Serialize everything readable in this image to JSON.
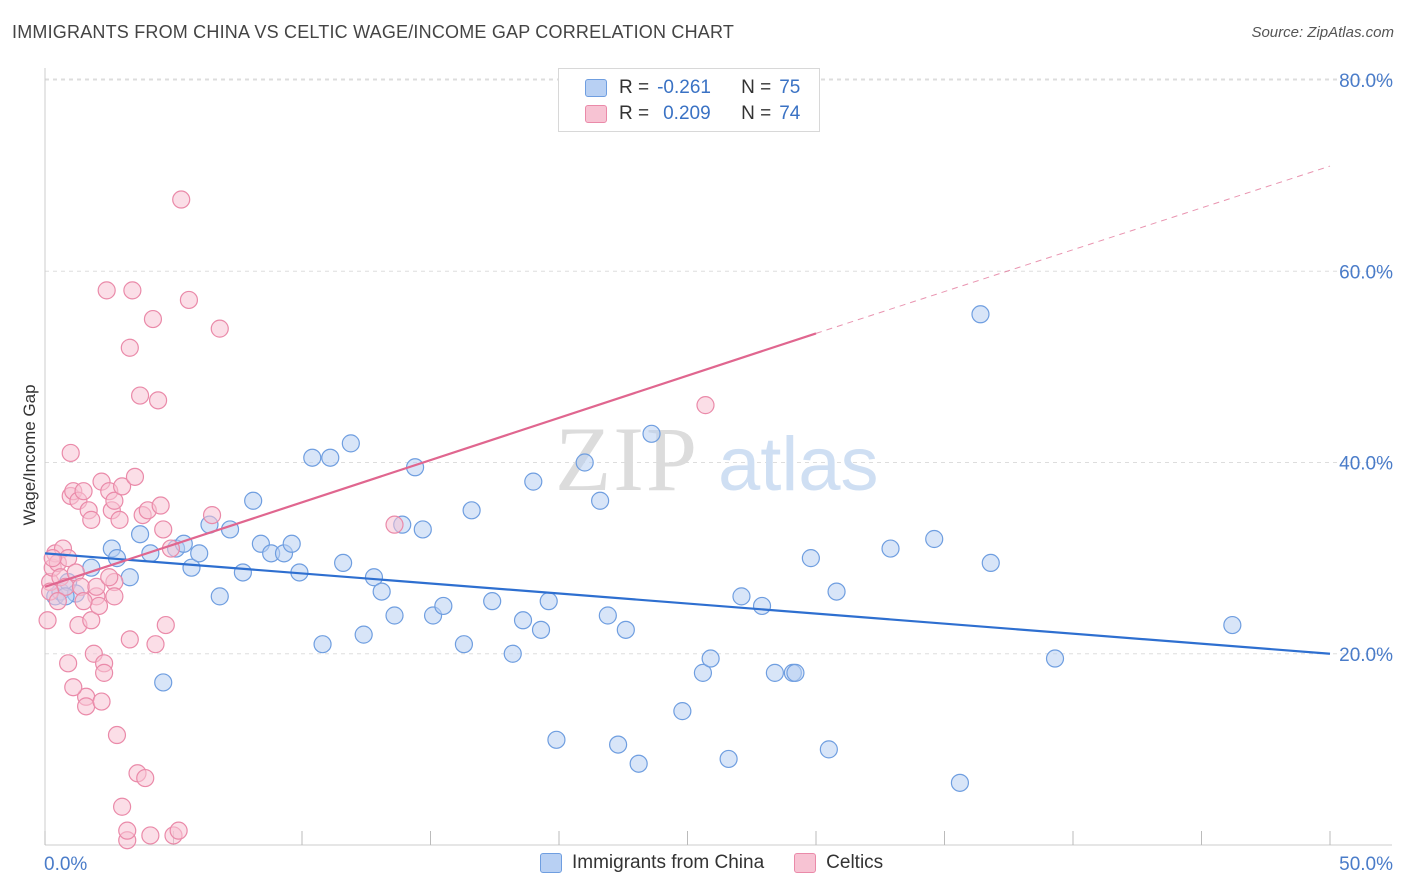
{
  "title": "IMMIGRANTS FROM CHINA VS CELTIC WAGE/INCOME GAP CORRELATION CHART",
  "source": "Source: ZipAtlas.com",
  "watermark": {
    "zip": "ZIP",
    "atlas": "atlas"
  },
  "legend": {
    "rows": [
      {
        "r_label": "R =",
        "r_value": "-0.261",
        "n_label": "N =",
        "n_value": "75"
      },
      {
        "r_label": "R =",
        "r_value": "0.209",
        "n_label": "N =",
        "n_value": "74"
      }
    ]
  },
  "colors": {
    "blue_fill": "#b8d0f3",
    "blue_stroke": "#6f9ee0",
    "blue_line": "#2e6fd0",
    "pink_fill": "#f7c3d3",
    "pink_stroke": "#ea8aa9",
    "pink_line": "#e0668f",
    "grid": "#dddddd",
    "axis_text": "#4a7cc9"
  },
  "chart_data": {
    "type": "scatter",
    "title": "IMMIGRANTS FROM CHINA VS CELTIC WAGE/INCOME GAP CORRELATION CHART",
    "xlabel": "",
    "ylabel": "Wage/Income Gap",
    "xlim": [
      0,
      50
    ],
    "ylim": [
      0,
      80
    ],
    "x_ticks_labels": [
      "0.0%",
      "50.0%"
    ],
    "y_ticks": [
      20,
      40,
      60,
      80
    ],
    "y_tick_labels": [
      "20.0%",
      "40.0%",
      "60.0%",
      "80.0%"
    ],
    "series": [
      {
        "name": "Immigrants from China",
        "color": "#6f9ee0",
        "r": -0.261,
        "n": 75,
        "trend": {
          "x0": 0,
          "y0": 30.5,
          "x1": 50,
          "y1": 20.0,
          "dashed_to": null
        },
        "points": [
          [
            0.4,
            26.0
          ],
          [
            0.6,
            26.5
          ],
          [
            0.9,
            27.5
          ],
          [
            1.2,
            26.3
          ],
          [
            1.8,
            29.0
          ],
          [
            2.6,
            31.0
          ],
          [
            2.8,
            30.0
          ],
          [
            3.3,
            28.0
          ],
          [
            3.7,
            32.5
          ],
          [
            4.1,
            30.5
          ],
          [
            4.6,
            17.0
          ],
          [
            5.1,
            31.0
          ],
          [
            5.4,
            31.5
          ],
          [
            5.7,
            29.0
          ],
          [
            6.0,
            30.5
          ],
          [
            6.4,
            33.5
          ],
          [
            6.8,
            26.0
          ],
          [
            7.2,
            33.0
          ],
          [
            7.7,
            28.5
          ],
          [
            8.1,
            36.0
          ],
          [
            8.4,
            31.5
          ],
          [
            8.8,
            30.5
          ],
          [
            9.3,
            30.5
          ],
          [
            9.6,
            31.5
          ],
          [
            9.9,
            28.5
          ],
          [
            10.4,
            40.5
          ],
          [
            10.8,
            21.0
          ],
          [
            11.1,
            40.5
          ],
          [
            11.6,
            29.5
          ],
          [
            11.9,
            42.0
          ],
          [
            12.4,
            22.0
          ],
          [
            12.8,
            28.0
          ],
          [
            13.1,
            26.5
          ],
          [
            13.6,
            24.0
          ],
          [
            13.9,
            33.5
          ],
          [
            14.4,
            39.5
          ],
          [
            14.7,
            33.0
          ],
          [
            15.1,
            24.0
          ],
          [
            15.5,
            25.0
          ],
          [
            16.3,
            21.0
          ],
          [
            16.6,
            35.0
          ],
          [
            17.4,
            25.5
          ],
          [
            18.2,
            20.0
          ],
          [
            18.6,
            23.5
          ],
          [
            19.0,
            38.0
          ],
          [
            19.3,
            22.5
          ],
          [
            19.6,
            25.5
          ],
          [
            19.9,
            11.0
          ],
          [
            21.0,
            40.0
          ],
          [
            21.6,
            36.0
          ],
          [
            21.9,
            24.0
          ],
          [
            22.3,
            10.5
          ],
          [
            22.6,
            22.5
          ],
          [
            23.1,
            8.5
          ],
          [
            23.6,
            43.0
          ],
          [
            24.8,
            14.0
          ],
          [
            25.6,
            18.0
          ],
          [
            25.9,
            19.5
          ],
          [
            26.6,
            9.0
          ],
          [
            27.1,
            26.0
          ],
          [
            27.9,
            25.0
          ],
          [
            28.4,
            18.0
          ],
          [
            29.1,
            18.0
          ],
          [
            29.2,
            18.0
          ],
          [
            29.8,
            30.0
          ],
          [
            30.5,
            10.0
          ],
          [
            30.8,
            26.5
          ],
          [
            32.9,
            31.0
          ],
          [
            34.6,
            32.0
          ],
          [
            35.6,
            6.5
          ],
          [
            36.4,
            55.5
          ],
          [
            36.8,
            29.5
          ],
          [
            39.3,
            19.5
          ],
          [
            46.2,
            23.0
          ],
          [
            0.8,
            26.0
          ]
        ]
      },
      {
        "name": "Celtics",
        "color": "#ea8aa9",
        "r": 0.209,
        "n": 74,
        "trend": {
          "x0": 0,
          "y0": 27.0,
          "x1": 30,
          "y1": 53.5,
          "dashed_x1": 50,
          "dashed_y1": 71.0
        },
        "points": [
          [
            0.1,
            23.5
          ],
          [
            0.2,
            27.5
          ],
          [
            0.3,
            29.0
          ],
          [
            0.4,
            30.5
          ],
          [
            0.5,
            29.5
          ],
          [
            0.6,
            28.0
          ],
          [
            0.7,
            31.0
          ],
          [
            0.8,
            27.0
          ],
          [
            0.9,
            30.0
          ],
          [
            1.0,
            41.0
          ],
          [
            1.0,
            36.5
          ],
          [
            1.1,
            37.0
          ],
          [
            1.2,
            28.5
          ],
          [
            1.3,
            23.0
          ],
          [
            1.3,
            36.0
          ],
          [
            1.4,
            27.0
          ],
          [
            1.5,
            37.0
          ],
          [
            1.6,
            15.5
          ],
          [
            1.6,
            14.5
          ],
          [
            1.7,
            35.0
          ],
          [
            1.8,
            34.0
          ],
          [
            1.8,
            23.5
          ],
          [
            1.9,
            20.0
          ],
          [
            2.0,
            26.0
          ],
          [
            2.0,
            27.0
          ],
          [
            2.1,
            25.0
          ],
          [
            2.2,
            15.0
          ],
          [
            2.2,
            38.0
          ],
          [
            2.3,
            19.0
          ],
          [
            2.3,
            18.0
          ],
          [
            2.4,
            58.0
          ],
          [
            2.5,
            37.0
          ],
          [
            2.6,
            35.0
          ],
          [
            2.7,
            27.5
          ],
          [
            2.7,
            26.0
          ],
          [
            2.7,
            36.0
          ],
          [
            2.8,
            11.5
          ],
          [
            2.9,
            34.0
          ],
          [
            3.0,
            37.5
          ],
          [
            3.0,
            4.0
          ],
          [
            3.2,
            0.5
          ],
          [
            3.2,
            1.5
          ],
          [
            3.3,
            52.0
          ],
          [
            3.3,
            21.5
          ],
          [
            3.4,
            58.0
          ],
          [
            3.5,
            38.5
          ],
          [
            3.6,
            7.5
          ],
          [
            3.7,
            47.0
          ],
          [
            3.8,
            34.5
          ],
          [
            3.9,
            7.0
          ],
          [
            4.0,
            35.0
          ],
          [
            4.1,
            1.0
          ],
          [
            4.2,
            55.0
          ],
          [
            4.3,
            21.0
          ],
          [
            4.4,
            46.5
          ],
          [
            4.5,
            35.5
          ],
          [
            4.6,
            33.0
          ],
          [
            4.7,
            23.0
          ],
          [
            4.9,
            31.0
          ],
          [
            5.0,
            1.0
          ],
          [
            5.2,
            1.5
          ],
          [
            5.3,
            67.5
          ],
          [
            5.6,
            57.0
          ],
          [
            6.5,
            34.5
          ],
          [
            6.8,
            54.0
          ],
          [
            13.6,
            33.5
          ],
          [
            25.7,
            46.0
          ],
          [
            0.2,
            26.5
          ],
          [
            0.5,
            25.5
          ],
          [
            0.9,
            19.0
          ],
          [
            1.1,
            16.5
          ],
          [
            0.3,
            30.0
          ],
          [
            1.5,
            25.5
          ],
          [
            2.5,
            28.0
          ]
        ]
      }
    ]
  },
  "bottom_legend": {
    "items": [
      {
        "label": "Immigrants from China"
      },
      {
        "label": "Celtics"
      }
    ]
  }
}
